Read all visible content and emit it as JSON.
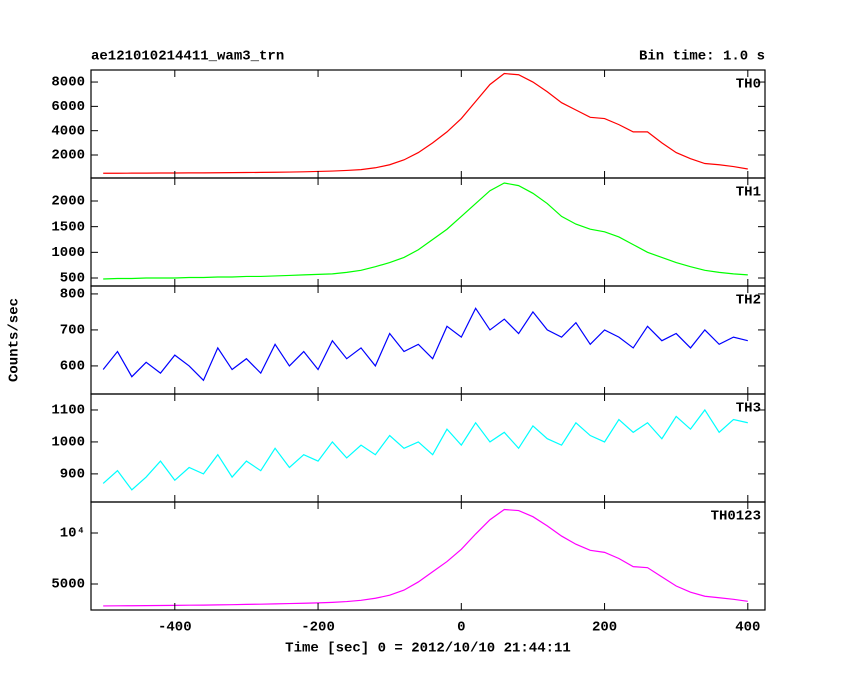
{
  "chart_data": [
    {
      "type": "line",
      "title": "ae121010214411_wam3_trn",
      "subtitle": "Bin time: 1.0 s",
      "ylabel": "Counts/sec",
      "x": [
        -500,
        -480,
        -460,
        -440,
        -420,
        -400,
        -380,
        -360,
        -340,
        -320,
        -300,
        -280,
        -260,
        -240,
        -220,
        -200,
        -180,
        -160,
        -140,
        -120,
        -100,
        -80,
        -60,
        -40,
        -20,
        0,
        20,
        40,
        60,
        80,
        100,
        120,
        140,
        160,
        180,
        200,
        220,
        240,
        260,
        280,
        300,
        320,
        340,
        360,
        380,
        400
      ],
      "series": [
        {
          "name": "TH0",
          "color": "#ff0000",
          "values": [
            500,
            500,
            510,
            510,
            520,
            520,
            530,
            530,
            540,
            550,
            560,
            570,
            580,
            600,
            620,
            650,
            680,
            730,
            800,
            950,
            1200,
            1600,
            2200,
            3000,
            3900,
            5000,
            6400,
            7800,
            8700,
            8600,
            8000,
            7200,
            6300,
            5700,
            5100,
            5000,
            4500,
            3900,
            3900,
            3000,
            2200,
            1700,
            1300,
            1200,
            1050,
            850
          ]
        }
      ],
      "xlim": [
        -517,
        424
      ],
      "xticks": [
        -400,
        -200,
        0,
        200,
        400
      ],
      "ylim": [
        110,
        8990
      ],
      "yticks": [
        2000,
        4000,
        6000,
        8000
      ]
    },
    {
      "type": "line",
      "x": [
        -500,
        -480,
        -460,
        -440,
        -420,
        -400,
        -380,
        -360,
        -340,
        -320,
        -300,
        -280,
        -260,
        -240,
        -220,
        -200,
        -180,
        -160,
        -140,
        -120,
        -100,
        -80,
        -60,
        -40,
        -20,
        0,
        20,
        40,
        60,
        80,
        100,
        120,
        140,
        160,
        180,
        200,
        220,
        240,
        260,
        280,
        300,
        320,
        340,
        360,
        380,
        400
      ],
      "series": [
        {
          "name": "TH1",
          "color": "#00ff00",
          "values": [
            480,
            490,
            490,
            500,
            500,
            500,
            510,
            510,
            520,
            520,
            530,
            530,
            540,
            550,
            560,
            570,
            580,
            610,
            650,
            720,
            800,
            900,
            1050,
            1250,
            1450,
            1700,
            1950,
            2200,
            2350,
            2300,
            2150,
            1950,
            1700,
            1550,
            1450,
            1400,
            1300,
            1150,
            1000,
            900,
            800,
            720,
            650,
            610,
            580,
            560
          ]
        }
      ],
      "xlim": [
        -517,
        424
      ],
      "xticks": [
        -400,
        -200,
        0,
        200,
        400
      ],
      "ylim": [
        344,
        2448
      ],
      "yticks": [
        500,
        1000,
        1500,
        2000
      ]
    },
    {
      "type": "line",
      "x": [
        -500,
        -480,
        -460,
        -440,
        -420,
        -400,
        -380,
        -360,
        -340,
        -320,
        -300,
        -280,
        -260,
        -240,
        -220,
        -200,
        -180,
        -160,
        -140,
        -120,
        -100,
        -80,
        -60,
        -40,
        -20,
        0,
        20,
        40,
        60,
        80,
        100,
        120,
        140,
        160,
        180,
        200,
        220,
        240,
        260,
        280,
        300,
        320,
        340,
        360,
        380,
        400
      ],
      "series": [
        {
          "name": "TH2",
          "color": "#0000ff",
          "values": [
            590,
            640,
            570,
            610,
            580,
            630,
            600,
            560,
            650,
            590,
            620,
            580,
            660,
            600,
            640,
            590,
            670,
            620,
            650,
            600,
            690,
            640,
            660,
            620,
            710,
            680,
            760,
            700,
            730,
            690,
            750,
            700,
            680,
            720,
            660,
            700,
            680,
            650,
            710,
            670,
            690,
            650,
            700,
            660,
            680,
            670
          ]
        }
      ],
      "xlim": [
        -517,
        424
      ],
      "xticks": [
        -400,
        -200,
        0,
        200,
        400
      ],
      "ylim": [
        522,
        822
      ],
      "yticks": [
        600,
        700,
        800
      ]
    },
    {
      "type": "line",
      "x": [
        -500,
        -480,
        -460,
        -440,
        -420,
        -400,
        -380,
        -360,
        -340,
        -320,
        -300,
        -280,
        -260,
        -240,
        -220,
        -200,
        -180,
        -160,
        -140,
        -120,
        -100,
        -80,
        -60,
        -40,
        -20,
        0,
        20,
        40,
        60,
        80,
        100,
        120,
        140,
        160,
        180,
        200,
        220,
        240,
        260,
        280,
        300,
        320,
        340,
        360,
        380,
        400
      ],
      "series": [
        {
          "name": "TH3",
          "color": "#00ffff",
          "values": [
            870,
            910,
            850,
            890,
            940,
            880,
            920,
            900,
            960,
            890,
            940,
            910,
            980,
            920,
            960,
            940,
            1000,
            950,
            990,
            960,
            1020,
            980,
            1000,
            960,
            1040,
            990,
            1060,
            1000,
            1030,
            980,
            1050,
            1010,
            990,
            1060,
            1020,
            1000,
            1070,
            1030,
            1060,
            1010,
            1080,
            1040,
            1100,
            1030,
            1070,
            1060
          ]
        }
      ],
      "xlim": [
        -517,
        424
      ],
      "xticks": [
        -400,
        -200,
        0,
        200,
        400
      ],
      "ylim": [
        812,
        1150
      ],
      "yticks": [
        900,
        1000,
        1100
      ]
    },
    {
      "type": "line",
      "xlabel": "Time [sec] 0 = 2012/10/10 21:44:11",
      "x": [
        -500,
        -480,
        -460,
        -440,
        -420,
        -400,
        -380,
        -360,
        -340,
        -320,
        -300,
        -280,
        -260,
        -240,
        -220,
        -200,
        -180,
        -160,
        -140,
        -120,
        -100,
        -80,
        -60,
        -40,
        -20,
        0,
        20,
        40,
        60,
        80,
        100,
        120,
        140,
        160,
        180,
        200,
        220,
        240,
        260,
        280,
        300,
        320,
        340,
        360,
        380,
        400
      ],
      "series": [
        {
          "name": "TH0123",
          "color": "#ff00ff",
          "values": [
            2850,
            2860,
            2870,
            2880,
            2890,
            2900,
            2920,
            2930,
            2950,
            2970,
            3000,
            3020,
            3050,
            3080,
            3110,
            3150,
            3200,
            3280,
            3400,
            3600,
            3900,
            4400,
            5200,
            6200,
            7200,
            8400,
            9900,
            11300,
            12300,
            12200,
            11600,
            10700,
            9700,
            8900,
            8300,
            8100,
            7500,
            6700,
            6600,
            5700,
            4800,
            4200,
            3800,
            3650,
            3500,
            3300
          ]
        }
      ],
      "xlim": [
        -517,
        424
      ],
      "xticks": [
        -400,
        -200,
        0,
        200,
        400
      ],
      "ylim": [
        2450,
        13040
      ],
      "yticks": [
        5000,
        {
          "value": 10000,
          "label": "10⁴"
        }
      ]
    }
  ]
}
